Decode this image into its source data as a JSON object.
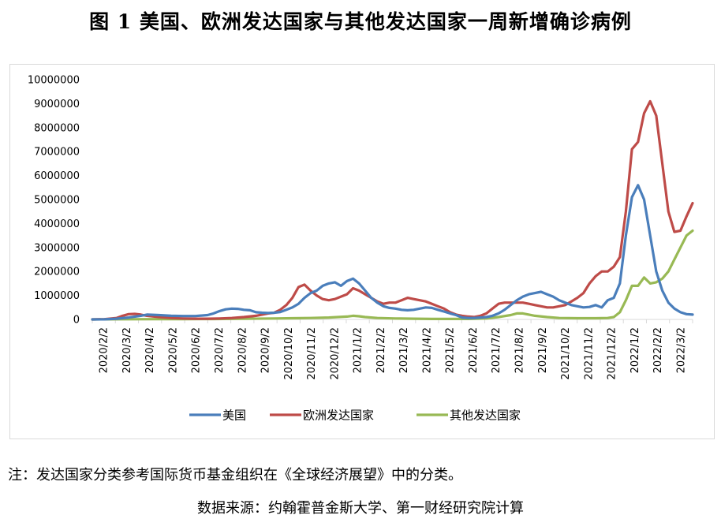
{
  "title": "图 1 美国、欧洲发达国家与其他发达国家一周新增确诊病例",
  "note": "注：发达国家分类参考国际货币基金组织在《全球经济展望》中的分类。",
  "source": "数据来源：约翰霍普金斯大学、第一财经研究院计算",
  "chart_data": {
    "type": "line",
    "title": "",
    "xlabel": "",
    "ylabel": "",
    "ylim": [
      0,
      10000000
    ],
    "yticks": [
      "0",
      "1000000",
      "2000000",
      "3000000",
      "4000000",
      "5000000",
      "6000000",
      "7000000",
      "8000000",
      "9000000",
      "10000000"
    ],
    "xticks": [
      "2020/2/2",
      "2020/3/2",
      "2020/4/2",
      "2020/5/2",
      "2020/6/2",
      "2020/7/2",
      "2020/8/2",
      "2020/9/2",
      "2020/10/2",
      "2020/11/2",
      "2020/12/2",
      "2021/1/2",
      "2021/2/2",
      "2021/3/2",
      "2021/4/2",
      "2021/5/2",
      "2021/6/2",
      "2021/7/2",
      "2021/8/2",
      "2021/9/2",
      "2021/10/2",
      "2021/11/2",
      "2021/12/2",
      "2022/1/2",
      "2022/2/2",
      "2022/3/2"
    ],
    "grid": false,
    "legend_position": "bottom",
    "series": [
      {
        "name": "美国",
        "color": "#4a7ebb",
        "points": [
          [
            0,
            0
          ],
          [
            2,
            2000
          ],
          [
            4,
            30000
          ],
          [
            6,
            80000
          ],
          [
            8,
            150000
          ],
          [
            9,
            200000
          ],
          [
            11,
            180000
          ],
          [
            13,
            150000
          ],
          [
            15,
            140000
          ],
          [
            17,
            140000
          ],
          [
            19,
            180000
          ],
          [
            20,
            250000
          ],
          [
            21,
            350000
          ],
          [
            22,
            420000
          ],
          [
            23,
            450000
          ],
          [
            24,
            440000
          ],
          [
            25,
            400000
          ],
          [
            26,
            380000
          ],
          [
            27,
            300000
          ],
          [
            28,
            280000
          ],
          [
            29,
            270000
          ],
          [
            30,
            280000
          ],
          [
            31,
            310000
          ],
          [
            32,
            400000
          ],
          [
            33,
            500000
          ],
          [
            34,
            650000
          ],
          [
            35,
            900000
          ],
          [
            36,
            1100000
          ],
          [
            37,
            1200000
          ],
          [
            38,
            1400000
          ],
          [
            39,
            1500000
          ],
          [
            40,
            1550000
          ],
          [
            41,
            1400000
          ],
          [
            42,
            1600000
          ],
          [
            43,
            1700000
          ],
          [
            44,
            1500000
          ],
          [
            45,
            1200000
          ],
          [
            46,
            900000
          ],
          [
            47,
            700000
          ],
          [
            48,
            550000
          ],
          [
            49,
            480000
          ],
          [
            50,
            450000
          ],
          [
            51,
            400000
          ],
          [
            52,
            380000
          ],
          [
            53,
            400000
          ],
          [
            54,
            450000
          ],
          [
            55,
            500000
          ],
          [
            56,
            480000
          ],
          [
            57,
            400000
          ],
          [
            58,
            330000
          ],
          [
            59,
            250000
          ],
          [
            60,
            180000
          ],
          [
            61,
            80000
          ],
          [
            62,
            60000
          ],
          [
            63,
            60000
          ],
          [
            64,
            80000
          ],
          [
            65,
            100000
          ],
          [
            66,
            150000
          ],
          [
            67,
            250000
          ],
          [
            68,
            400000
          ],
          [
            69,
            600000
          ],
          [
            70,
            800000
          ],
          [
            71,
            950000
          ],
          [
            72,
            1050000
          ],
          [
            73,
            1100000
          ],
          [
            74,
            1150000
          ],
          [
            75,
            1050000
          ],
          [
            76,
            950000
          ],
          [
            77,
            800000
          ],
          [
            78,
            700000
          ],
          [
            79,
            600000
          ],
          [
            80,
            550000
          ],
          [
            81,
            500000
          ],
          [
            82,
            520000
          ],
          [
            83,
            600000
          ],
          [
            84,
            500000
          ],
          [
            85,
            800000
          ],
          [
            86,
            900000
          ],
          [
            87,
            1500000
          ],
          [
            88,
            3500000
          ],
          [
            89,
            5100000
          ],
          [
            90,
            5600000
          ],
          [
            91,
            5000000
          ],
          [
            92,
            3500000
          ],
          [
            93,
            2000000
          ],
          [
            94,
            1200000
          ],
          [
            95,
            700000
          ],
          [
            96,
            450000
          ],
          [
            97,
            300000
          ],
          [
            98,
            220000
          ],
          [
            99,
            200000
          ]
        ]
      },
      {
        "name": "欧洲发达国家",
        "color": "#be4b48",
        "points": [
          [
            0,
            0
          ],
          [
            2,
            10000
          ],
          [
            4,
            60000
          ],
          [
            5,
            150000
          ],
          [
            6,
            220000
          ],
          [
            7,
            230000
          ],
          [
            8,
            200000
          ],
          [
            9,
            150000
          ],
          [
            11,
            100000
          ],
          [
            13,
            60000
          ],
          [
            15,
            40000
          ],
          [
            17,
            30000
          ],
          [
            19,
            30000
          ],
          [
            21,
            40000
          ],
          [
            23,
            60000
          ],
          [
            25,
            100000
          ],
          [
            27,
            150000
          ],
          [
            29,
            250000
          ],
          [
            30,
            280000
          ],
          [
            31,
            400000
          ],
          [
            32,
            600000
          ],
          [
            33,
            900000
          ],
          [
            34,
            1350000
          ],
          [
            35,
            1450000
          ],
          [
            36,
            1200000
          ],
          [
            37,
            1000000
          ],
          [
            38,
            850000
          ],
          [
            39,
            800000
          ],
          [
            40,
            850000
          ],
          [
            41,
            950000
          ],
          [
            42,
            1050000
          ],
          [
            43,
            1300000
          ],
          [
            44,
            1200000
          ],
          [
            45,
            1050000
          ],
          [
            46,
            900000
          ],
          [
            47,
            750000
          ],
          [
            48,
            650000
          ],
          [
            49,
            700000
          ],
          [
            50,
            700000
          ],
          [
            51,
            800000
          ],
          [
            52,
            900000
          ],
          [
            53,
            850000
          ],
          [
            54,
            800000
          ],
          [
            55,
            750000
          ],
          [
            56,
            650000
          ],
          [
            57,
            550000
          ],
          [
            58,
            450000
          ],
          [
            59,
            300000
          ],
          [
            60,
            200000
          ],
          [
            61,
            150000
          ],
          [
            62,
            120000
          ],
          [
            63,
            100000
          ],
          [
            64,
            150000
          ],
          [
            65,
            250000
          ],
          [
            66,
            450000
          ],
          [
            67,
            650000
          ],
          [
            68,
            700000
          ],
          [
            69,
            700000
          ],
          [
            70,
            700000
          ],
          [
            71,
            700000
          ],
          [
            72,
            650000
          ],
          [
            73,
            600000
          ],
          [
            74,
            550000
          ],
          [
            75,
            500000
          ],
          [
            76,
            500000
          ],
          [
            77,
            550000
          ],
          [
            78,
            600000
          ],
          [
            79,
            750000
          ],
          [
            80,
            900000
          ],
          [
            81,
            1100000
          ],
          [
            82,
            1500000
          ],
          [
            83,
            1800000
          ],
          [
            84,
            2000000
          ],
          [
            85,
            2000000
          ],
          [
            86,
            2200000
          ],
          [
            87,
            2600000
          ],
          [
            88,
            4500000
          ],
          [
            89,
            7100000
          ],
          [
            90,
            7400000
          ],
          [
            91,
            8600000
          ],
          [
            92,
            9100000
          ],
          [
            93,
            8500000
          ],
          [
            94,
            6500000
          ],
          [
            95,
            4500000
          ],
          [
            96,
            3650000
          ],
          [
            97,
            3700000
          ],
          [
            98,
            4300000
          ],
          [
            99,
            4850000
          ]
        ]
      },
      {
        "name": "其他发达国家",
        "color": "#98b954",
        "points": [
          [
            0,
            0
          ],
          [
            5,
            5000
          ],
          [
            10,
            10000
          ],
          [
            15,
            10000
          ],
          [
            20,
            15000
          ],
          [
            25,
            25000
          ],
          [
            30,
            40000
          ],
          [
            33,
            50000
          ],
          [
            36,
            60000
          ],
          [
            39,
            80000
          ],
          [
            42,
            120000
          ],
          [
            43,
            150000
          ],
          [
            44,
            130000
          ],
          [
            45,
            100000
          ],
          [
            47,
            60000
          ],
          [
            50,
            40000
          ],
          [
            53,
            30000
          ],
          [
            56,
            20000
          ],
          [
            59,
            20000
          ],
          [
            62,
            20000
          ],
          [
            65,
            40000
          ],
          [
            67,
            100000
          ],
          [
            69,
            180000
          ],
          [
            70,
            250000
          ],
          [
            71,
            250000
          ],
          [
            72,
            200000
          ],
          [
            73,
            150000
          ],
          [
            75,
            100000
          ],
          [
            77,
            60000
          ],
          [
            80,
            50000
          ],
          [
            83,
            50000
          ],
          [
            85,
            60000
          ],
          [
            86,
            100000
          ],
          [
            87,
            300000
          ],
          [
            88,
            800000
          ],
          [
            89,
            1400000
          ],
          [
            90,
            1400000
          ],
          [
            91,
            1750000
          ],
          [
            92,
            1500000
          ],
          [
            93,
            1550000
          ],
          [
            94,
            1700000
          ],
          [
            95,
            2000000
          ],
          [
            96,
            2500000
          ],
          [
            97,
            3000000
          ],
          [
            98,
            3500000
          ],
          [
            99,
            3700000
          ]
        ]
      }
    ]
  }
}
